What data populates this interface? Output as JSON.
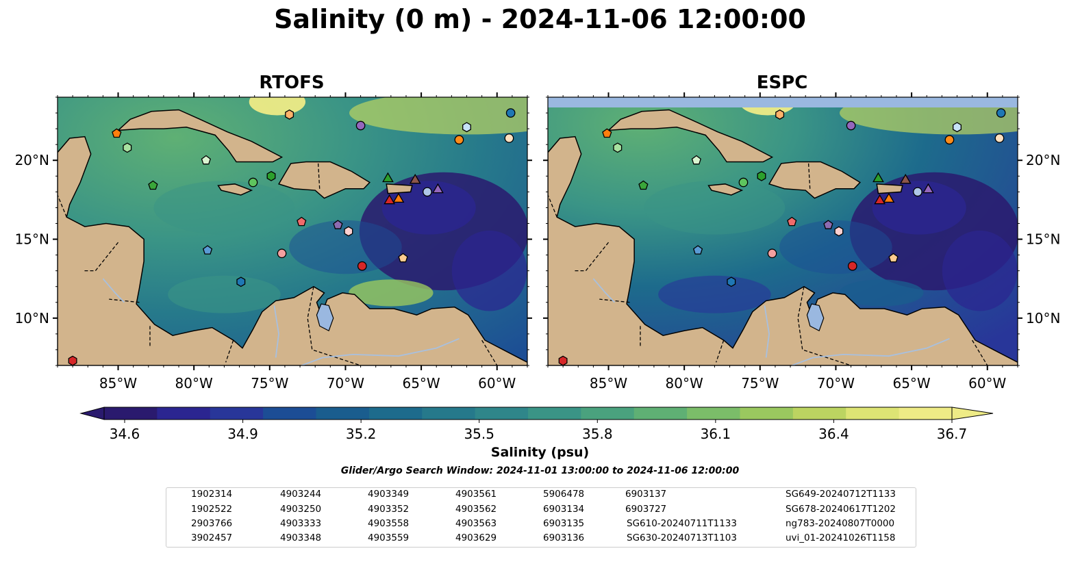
{
  "title": "Salinity (0 m) - 2024-11-06 12:00:00",
  "panels": [
    {
      "title": "RTOFS"
    },
    {
      "title": "ESPC"
    }
  ],
  "map": {
    "lon_range": [
      -89,
      -58
    ],
    "lat_range": [
      7,
      24
    ],
    "lon_ticks": [
      "85°W",
      "80°W",
      "75°W",
      "70°W",
      "65°W",
      "60°W"
    ],
    "lat_ticks": [
      "20°N",
      "15°N",
      "10°N"
    ],
    "colors": {
      "land": "#d2b48c",
      "fresh_ocean": "#2a1a6e",
      "lake": "#9ab8e0",
      "no_data": "#9ab8e0"
    }
  },
  "colorbar": {
    "label": "Salinity (psu)",
    "ticks": [
      "34.6",
      "34.9",
      "35.2",
      "35.5",
      "35.8",
      "36.1",
      "36.4",
      "36.7"
    ],
    "min": 34.6,
    "max": 36.7,
    "colors": [
      "#2a1a6e",
      "#2b2590",
      "#283699",
      "#1c4d95",
      "#1a5d8e",
      "#1d6b8c",
      "#26798b",
      "#2f868a",
      "#3a9486",
      "#4aa27e",
      "#5fb074",
      "#7bbd69",
      "#9ac85f",
      "#bcd461",
      "#dde474",
      "#eeeb86"
    ]
  },
  "search_window": "Glider/Argo Search Window: 2024-11-01 13:00:00 to 2024-11-06 12:00:00",
  "legend": {
    "columns": [
      [
        {
          "label": "1902314",
          "marker": "circle",
          "color": "#1f77b4"
        },
        {
          "label": "1902522",
          "marker": "hexagon",
          "color": "#1f77b4"
        },
        {
          "label": "2903766",
          "marker": "pentagon",
          "color": "#5a9bd5"
        },
        {
          "label": "3902457",
          "marker": "circle",
          "color": "#aec7e8"
        }
      ],
      [
        {
          "label": "4903244",
          "marker": "hexagon",
          "color": "#c6e2f6"
        },
        {
          "label": "4903250",
          "marker": "pentagon",
          "color": "#ff7f0e"
        },
        {
          "label": "4903333",
          "marker": "circle",
          "color": "#ff8c1a"
        },
        {
          "label": "4903348",
          "marker": "hexagon",
          "color": "#ffb36b"
        }
      ],
      [
        {
          "label": "4903349",
          "marker": "pentagon",
          "color": "#ffcc8f"
        },
        {
          "label": "4903352",
          "marker": "circle",
          "color": "#ffe0c0"
        },
        {
          "label": "4903558",
          "marker": "hexagon",
          "color": "#2ca02c"
        },
        {
          "label": "4903559",
          "marker": "pentagon",
          "color": "#3aa63a"
        }
      ],
      [
        {
          "label": "4903561",
          "marker": "circle",
          "color": "#5ec45e"
        },
        {
          "label": "4903562",
          "marker": "hexagon",
          "color": "#a8e2a0"
        },
        {
          "label": "4903563",
          "marker": "pentagon",
          "color": "#d9f5d0"
        },
        {
          "label": "4903629",
          "marker": "circle",
          "color": "#d62728"
        }
      ],
      [
        {
          "label": "5906478",
          "marker": "hexagon",
          "color": "#d62728"
        },
        {
          "label": "6903134",
          "marker": "pentagon",
          "color": "#f06b6b"
        },
        {
          "label": "6903135",
          "marker": "circle",
          "color": "#f4a0a0"
        },
        {
          "label": "6903136",
          "marker": "hexagon",
          "color": "#fcd0d0"
        }
      ],
      [
        {
          "label": "6903137",
          "marker": "pentagon",
          "color": "#8c6bb1"
        },
        {
          "label": "6903727",
          "marker": "circle",
          "color": "#9467bd"
        },
        {
          "label": "SG610-20240711T1133",
          "marker": "triangle-line",
          "color": "#1f77b4"
        },
        {
          "label": "SG630-20240713T1103",
          "marker": "triangle-line",
          "color": "#ff7f0e"
        }
      ],
      [
        {
          "label": "SG649-20240712T1133",
          "marker": "triangle-line",
          "color": "#2ca02c"
        },
        {
          "label": "SG678-20240617T1202",
          "marker": "triangle-line",
          "color": "#d62728"
        },
        {
          "label": "ng783-20240807T0000",
          "marker": "triangle-line",
          "color": "#9467bd"
        },
        {
          "label": "uvi_01-20241026T1158",
          "marker": "triangle-line",
          "color": "#8c564b"
        }
      ]
    ]
  },
  "observations": [
    {
      "id": "1902314",
      "lon": -59.1,
      "lat": 23.0,
      "marker": "circle",
      "color": "#1f77b4"
    },
    {
      "id": "4903333",
      "lon": -62.5,
      "lat": 21.3,
      "marker": "circle",
      "color": "#ff8c1a"
    },
    {
      "id": "4903244",
      "lon": -62.0,
      "lat": 22.1,
      "marker": "hexagon",
      "color": "#c6e2f6"
    },
    {
      "id": "4903352",
      "lon": -59.2,
      "lat": 21.4,
      "marker": "circle",
      "color": "#ffe0c0"
    },
    {
      "id": "6903727",
      "lon": -69.0,
      "lat": 22.2,
      "marker": "circle",
      "color": "#9467bd"
    },
    {
      "id": "4903348",
      "lon": -73.7,
      "lat": 22.9,
      "marker": "hexagon",
      "color": "#ffb36b"
    },
    {
      "id": "4903250",
      "lon": -85.1,
      "lat": 21.7,
      "marker": "pentagon",
      "color": "#ff7f0e"
    },
    {
      "id": "4903562",
      "lon": -84.4,
      "lat": 20.8,
      "marker": "hexagon",
      "color": "#a8e2a0"
    },
    {
      "id": "4903563",
      "lon": -79.2,
      "lat": 20.0,
      "marker": "pentagon",
      "color": "#d9f5d0"
    },
    {
      "id": "4903559",
      "lon": -82.7,
      "lat": 18.4,
      "marker": "pentagon",
      "color": "#3aa63a"
    },
    {
      "id": "4903561",
      "lon": -76.1,
      "lat": 18.6,
      "marker": "circle",
      "color": "#5ec45e"
    },
    {
      "id": "4903558",
      "lon": -74.9,
      "lat": 19.0,
      "marker": "hexagon",
      "color": "#2ca02c"
    },
    {
      "id": "3902457",
      "lon": -64.6,
      "lat": 18.0,
      "marker": "circle",
      "color": "#aec7e8"
    },
    {
      "id": "6903134",
      "lon": -72.9,
      "lat": 16.1,
      "marker": "pentagon",
      "color": "#f06b6b"
    },
    {
      "id": "6903137",
      "lon": -70.5,
      "lat": 15.9,
      "marker": "pentagon",
      "color": "#8c6bb1"
    },
    {
      "id": "6903136",
      "lon": -69.8,
      "lat": 15.5,
      "marker": "hexagon",
      "color": "#fcd0d0"
    },
    {
      "id": "2903766",
      "lon": -79.1,
      "lat": 14.3,
      "marker": "pentagon",
      "color": "#5a9bd5"
    },
    {
      "id": "6903135",
      "lon": -74.2,
      "lat": 14.1,
      "marker": "circle",
      "color": "#f4a0a0"
    },
    {
      "id": "4903349",
      "lon": -66.2,
      "lat": 13.8,
      "marker": "pentagon",
      "color": "#ffcc8f"
    },
    {
      "id": "4903629",
      "lon": -68.9,
      "lat": 13.3,
      "marker": "circle",
      "color": "#d62728"
    },
    {
      "id": "1902522",
      "lon": -76.9,
      "lat": 12.3,
      "marker": "hexagon",
      "color": "#1f77b4"
    },
    {
      "id": "5906478",
      "lon": -88.0,
      "lat": 7.3,
      "marker": "hexagon",
      "color": "#d62728"
    },
    {
      "id": "SG649-20240712T1133",
      "lon": -67.2,
      "lat": 18.9,
      "marker": "triangle",
      "color": "#2ca02c"
    },
    {
      "id": "uvi_01-20241026T1158",
      "lon": -65.4,
      "lat": 18.8,
      "marker": "triangle",
      "color": "#8c564b"
    },
    {
      "id": "ng783-20240807T0000",
      "lon": -63.9,
      "lat": 18.2,
      "marker": "triangle",
      "color": "#9467bd"
    },
    {
      "id": "SG678-20240617T1202",
      "lon": -67.1,
      "lat": 17.5,
      "marker": "triangle",
      "color": "#d62728"
    },
    {
      "id": "SG630-20240713T1103",
      "lon": -66.5,
      "lat": 17.6,
      "marker": "triangle",
      "color": "#ff7f0e"
    }
  ]
}
